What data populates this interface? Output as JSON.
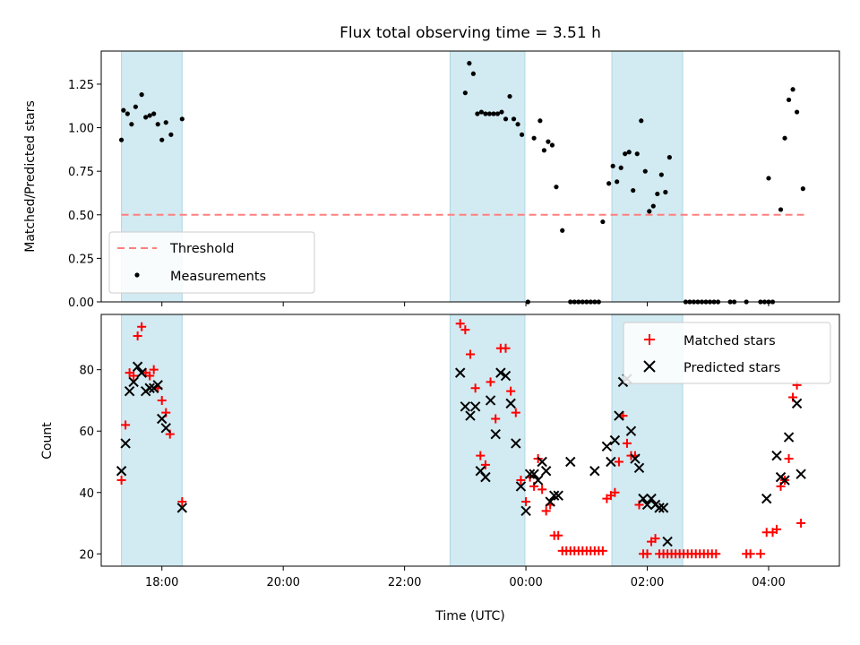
{
  "chart_data": [
    {
      "type": "scatter",
      "title": "Flux total observing time = 3.51 h",
      "xlabel": "",
      "ylabel": "Matched/Predicted stars",
      "xlim": [
        "17:00",
        "05:10"
      ],
      "ylim": [
        0,
        1.44
      ],
      "yticks": [
        "0.00",
        "0.25",
        "0.50",
        "0.75",
        "1.00",
        "1.25"
      ],
      "ytick_values": [
        0,
        0.25,
        0.5,
        0.75,
        1.0,
        1.25
      ],
      "xticks": [
        "18:00",
        "20:00",
        "22:00",
        "00:00",
        "02:00",
        "04:00"
      ],
      "xtick_values": [
        "18:00",
        "20:00",
        "22:00",
        "00:00",
        "02:00",
        "04:00"
      ],
      "show_xtick_labels": false,
      "shaded_regions": [
        [
          "17:20",
          "18:20"
        ],
        [
          "22:45",
          "23:59"
        ],
        [
          "01:25",
          "02:35"
        ]
      ],
      "shade_color": "#add8e6",
      "threshold": {
        "name": "Threshold",
        "value": 0.5,
        "x_from": "17:20",
        "x_to": "04:35",
        "color": "#ff7f7f"
      },
      "legend": {
        "placement": "lower-left",
        "entries": [
          "Threshold",
          "Measurements"
        ]
      },
      "series": [
        {
          "name": "Measurements",
          "marker": "dot",
          "color": "#000000",
          "points": [
            [
              "17:20",
              0.93
            ],
            [
              "17:22",
              1.1
            ],
            [
              "17:26",
              1.08
            ],
            [
              "17:30",
              1.02
            ],
            [
              "17:34",
              1.12
            ],
            [
              "17:40",
              1.19
            ],
            [
              "17:44",
              1.06
            ],
            [
              "17:48",
              1.07
            ],
            [
              "17:52",
              1.08
            ],
            [
              "17:56",
              1.02
            ],
            [
              "18:00",
              0.93
            ],
            [
              "18:04",
              1.03
            ],
            [
              "18:09",
              0.96
            ],
            [
              "18:20",
              1.05
            ],
            [
              "23:00",
              1.2
            ],
            [
              "23:04",
              1.37
            ],
            [
              "23:08",
              1.31
            ],
            [
              "23:12",
              1.08
            ],
            [
              "23:16",
              1.09
            ],
            [
              "23:20",
              1.08
            ],
            [
              "23:24",
              1.08
            ],
            [
              "23:28",
              1.08
            ],
            [
              "23:32",
              1.08
            ],
            [
              "23:36",
              1.09
            ],
            [
              "23:40",
              1.05
            ],
            [
              "23:44",
              1.18
            ],
            [
              "23:48",
              1.05
            ],
            [
              "23:52",
              1.02
            ],
            [
              "23:56",
              0.96
            ],
            [
              "00:02",
              0.0
            ],
            [
              "00:08",
              0.94
            ],
            [
              "00:14",
              1.04
            ],
            [
              "00:18",
              0.87
            ],
            [
              "00:22",
              0.92
            ],
            [
              "00:26",
              0.9
            ],
            [
              "00:30",
              0.66
            ],
            [
              "00:36",
              0.41
            ],
            [
              "00:44",
              0.0
            ],
            [
              "00:48",
              0.0
            ],
            [
              "00:52",
              0.0
            ],
            [
              "00:56",
              0.0
            ],
            [
              "01:00",
              0.0
            ],
            [
              "01:04",
              0.0
            ],
            [
              "01:08",
              0.0
            ],
            [
              "01:12",
              0.0
            ],
            [
              "01:16",
              0.46
            ],
            [
              "01:22",
              0.68
            ],
            [
              "01:26",
              0.78
            ],
            [
              "01:30",
              0.69
            ],
            [
              "01:34",
              0.77
            ],
            [
              "01:38",
              0.85
            ],
            [
              "01:42",
              0.86
            ],
            [
              "01:46",
              0.64
            ],
            [
              "01:50",
              0.85
            ],
            [
              "01:54",
              1.04
            ],
            [
              "01:58",
              0.75
            ],
            [
              "02:02",
              0.52
            ],
            [
              "02:06",
              0.55
            ],
            [
              "02:10",
              0.62
            ],
            [
              "02:14",
              0.73
            ],
            [
              "02:18",
              0.63
            ],
            [
              "02:22",
              0.83
            ],
            [
              "02:38",
              0.0
            ],
            [
              "02:42",
              0.0
            ],
            [
              "02:46",
              0.0
            ],
            [
              "02:50",
              0.0
            ],
            [
              "02:54",
              0.0
            ],
            [
              "02:58",
              0.0
            ],
            [
              "03:02",
              0.0
            ],
            [
              "03:06",
              0.0
            ],
            [
              "03:10",
              0.0
            ],
            [
              "03:22",
              0.0
            ],
            [
              "03:26",
              0.0
            ],
            [
              "03:38",
              0.0
            ],
            [
              "03:52",
              0.0
            ],
            [
              "03:56",
              0.0
            ],
            [
              "04:00",
              0.0
            ],
            [
              "04:04",
              0.0
            ],
            [
              "04:00",
              0.71
            ],
            [
              "04:12",
              0.53
            ],
            [
              "04:16",
              0.94
            ],
            [
              "04:20",
              1.16
            ],
            [
              "04:24",
              1.22
            ],
            [
              "04:28",
              1.09
            ],
            [
              "04:34",
              0.65
            ]
          ]
        }
      ]
    },
    {
      "type": "scatter",
      "title": "",
      "xlabel": "Time (UTC)",
      "ylabel": "Count",
      "xlim": [
        "17:00",
        "05:10"
      ],
      "ylim": [
        16,
        98
      ],
      "yticks": [
        "20",
        "40",
        "60",
        "80"
      ],
      "ytick_values": [
        20,
        40,
        60,
        80
      ],
      "xticks": [
        "18:00",
        "20:00",
        "22:00",
        "00:00",
        "02:00",
        "04:00"
      ],
      "xtick_values": [
        "18:00",
        "20:00",
        "22:00",
        "00:00",
        "02:00",
        "04:00"
      ],
      "show_xtick_labels": true,
      "shaded_regions": [
        [
          "17:20",
          "18:20"
        ],
        [
          "22:45",
          "23:59"
        ],
        [
          "01:25",
          "02:35"
        ]
      ],
      "shade_color": "#add8e6",
      "legend": {
        "placement": "upper-right",
        "entries": [
          "Matched stars",
          "Predicted stars"
        ]
      },
      "series": [
        {
          "name": "Matched stars",
          "marker": "plus",
          "color": "#ff0000",
          "points": [
            [
              "17:20",
              44
            ],
            [
              "17:24",
              62
            ],
            [
              "17:28",
              79
            ],
            [
              "17:32",
              78
            ],
            [
              "17:36",
              91
            ],
            [
              "17:40",
              94
            ],
            [
              "17:44",
              79
            ],
            [
              "17:48",
              78
            ],
            [
              "17:52",
              80
            ],
            [
              "17:56",
              74
            ],
            [
              "18:00",
              70
            ],
            [
              "18:04",
              66
            ],
            [
              "18:08",
              59
            ],
            [
              "18:20",
              37
            ],
            [
              "22:55",
              95
            ],
            [
              "23:00",
              93
            ],
            [
              "23:05",
              85
            ],
            [
              "23:10",
              74
            ],
            [
              "23:15",
              52
            ],
            [
              "23:20",
              49
            ],
            [
              "23:25",
              76
            ],
            [
              "23:30",
              64
            ],
            [
              "23:35",
              87
            ],
            [
              "23:40",
              87
            ],
            [
              "23:45",
              73
            ],
            [
              "23:50",
              66
            ],
            [
              "23:55",
              44
            ],
            [
              "00:00",
              37
            ],
            [
              "00:04",
              45
            ],
            [
              "00:08",
              42
            ],
            [
              "00:12",
              51
            ],
            [
              "00:16",
              41
            ],
            [
              "00:20",
              34
            ],
            [
              "00:24",
              36
            ],
            [
              "00:28",
              26
            ],
            [
              "00:32",
              26
            ],
            [
              "00:36",
              21
            ],
            [
              "00:40",
              21
            ],
            [
              "00:44",
              21
            ],
            [
              "00:48",
              21
            ],
            [
              "00:52",
              21
            ],
            [
              "00:56",
              21
            ],
            [
              "01:00",
              21
            ],
            [
              "01:04",
              21
            ],
            [
              "01:08",
              21
            ],
            [
              "01:12",
              21
            ],
            [
              "01:16",
              21
            ],
            [
              "01:20",
              38
            ],
            [
              "01:24",
              39
            ],
            [
              "01:28",
              40
            ],
            [
              "01:32",
              50
            ],
            [
              "01:36",
              65
            ],
            [
              "01:40",
              56
            ],
            [
              "01:44",
              52
            ],
            [
              "01:48",
              52
            ],
            [
              "01:52",
              36
            ],
            [
              "01:56",
              20
            ],
            [
              "02:00",
              20
            ],
            [
              "02:04",
              24
            ],
            [
              "02:08",
              25
            ],
            [
              "02:12",
              20
            ],
            [
              "02:16",
              20
            ],
            [
              "02:20",
              20
            ],
            [
              "02:24",
              20
            ],
            [
              "02:28",
              20
            ],
            [
              "02:32",
              20
            ],
            [
              "02:36",
              20
            ],
            [
              "02:40",
              20
            ],
            [
              "02:44",
              20
            ],
            [
              "02:48",
              20
            ],
            [
              "02:52",
              20
            ],
            [
              "02:56",
              20
            ],
            [
              "03:00",
              20
            ],
            [
              "03:04",
              20
            ],
            [
              "03:08",
              20
            ],
            [
              "03:38",
              20
            ],
            [
              "03:42",
              20
            ],
            [
              "03:52",
              20
            ],
            [
              "03:58",
              27
            ],
            [
              "04:04",
              27
            ],
            [
              "04:08",
              28
            ],
            [
              "04:12",
              42
            ],
            [
              "04:16",
              44
            ],
            [
              "04:20",
              51
            ],
            [
              "04:24",
              71
            ],
            [
              "04:28",
              75
            ],
            [
              "04:32",
              30
            ]
          ]
        },
        {
          "name": "Predicted stars",
          "marker": "x",
          "color": "#000000",
          "points": [
            [
              "17:20",
              47
            ],
            [
              "17:24",
              56
            ],
            [
              "17:28",
              73
            ],
            [
              "17:32",
              76
            ],
            [
              "17:36",
              81
            ],
            [
              "17:40",
              79
            ],
            [
              "17:44",
              73
            ],
            [
              "17:48",
              74
            ],
            [
              "17:52",
              74
            ],
            [
              "17:56",
              75
            ],
            [
              "18:00",
              64
            ],
            [
              "18:04",
              61
            ],
            [
              "18:20",
              35
            ],
            [
              "22:55",
              79
            ],
            [
              "23:00",
              68
            ],
            [
              "23:05",
              65
            ],
            [
              "23:10",
              68
            ],
            [
              "23:15",
              47
            ],
            [
              "23:20",
              45
            ],
            [
              "23:25",
              70
            ],
            [
              "23:30",
              59
            ],
            [
              "23:35",
              79
            ],
            [
              "23:40",
              78
            ],
            [
              "23:45",
              69
            ],
            [
              "23:50",
              56
            ],
            [
              "23:55",
              42
            ],
            [
              "00:00",
              34
            ],
            [
              "00:04",
              46
            ],
            [
              "00:08",
              46
            ],
            [
              "00:12",
              44
            ],
            [
              "00:16",
              50
            ],
            [
              "00:20",
              47
            ],
            [
              "00:24",
              37
            ],
            [
              "00:28",
              39
            ],
            [
              "00:32",
              39
            ],
            [
              "00:44",
              50
            ],
            [
              "01:08",
              47
            ],
            [
              "01:20",
              55
            ],
            [
              "01:24",
              50
            ],
            [
              "01:28",
              57
            ],
            [
              "01:32",
              65
            ],
            [
              "01:36",
              76
            ],
            [
              "01:40",
              77
            ],
            [
              "01:44",
              60
            ],
            [
              "01:48",
              51
            ],
            [
              "01:52",
              48
            ],
            [
              "01:56",
              38
            ],
            [
              "02:00",
              36
            ],
            [
              "02:04",
              38
            ],
            [
              "02:08",
              36
            ],
            [
              "02:12",
              35
            ],
            [
              "02:16",
              35
            ],
            [
              "02:20",
              24
            ],
            [
              "03:58",
              38
            ],
            [
              "04:08",
              52
            ],
            [
              "04:12",
              45
            ],
            [
              "04:16",
              44
            ],
            [
              "04:20",
              58
            ],
            [
              "04:28",
              69
            ],
            [
              "04:32",
              46
            ]
          ]
        }
      ]
    }
  ]
}
